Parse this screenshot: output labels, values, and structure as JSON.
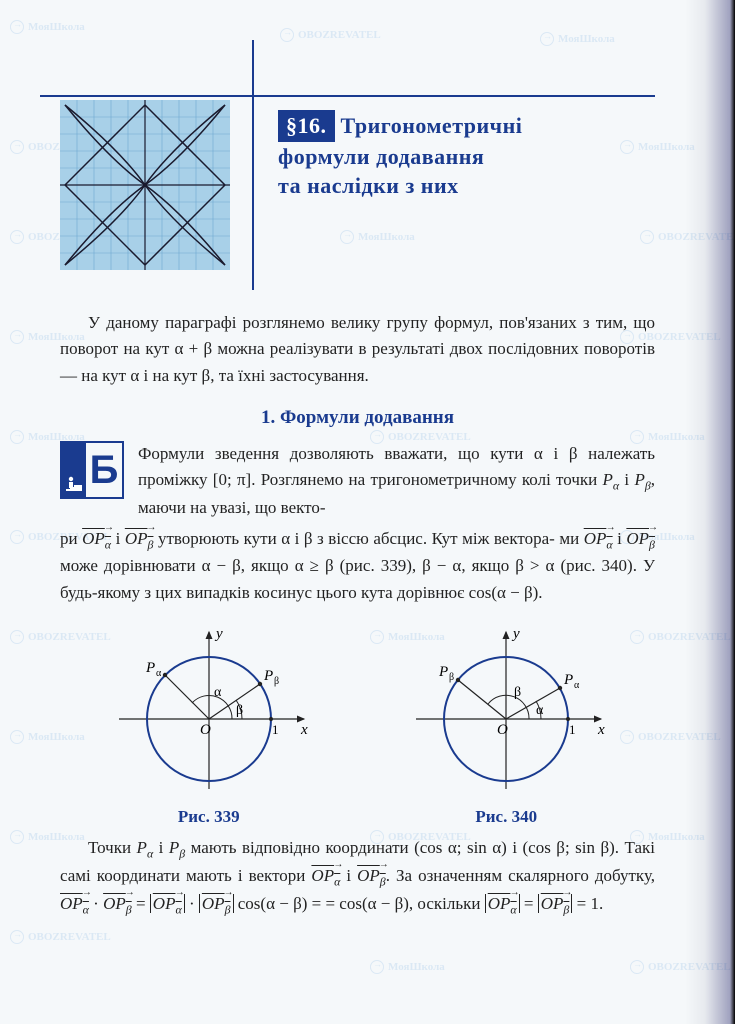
{
  "watermarks": {
    "text1": "МояШкола",
    "text2": "OBOZREVATEL"
  },
  "header": {
    "section_badge": "§16.",
    "title_line1": "Тригонометричні",
    "title_line2": "формули додавання",
    "title_line3": "та наслідки з них",
    "badge_bg": "#1a3b8f",
    "badge_fg": "#ffffff"
  },
  "grid_figure": {
    "bg_color": "#a8d0e8",
    "grid_color": "#6fa8d0",
    "curve_color": "#1a1a2e",
    "grid_size": 10
  },
  "intro_paragraph": "У даному параграфі розглянемо велику групу формул, пов'язаних з тим, що поворот на кут α + β можна реалізувати в результаті двох послідовних поворотів — на кут α і на кут β, та їхні застосування.",
  "subheading1": "1. Формули додавання",
  "b_icon_letter": "Б",
  "para_b_start": "Формули зведення дозволяють вважати, що кути α і β належать проміжку [0; π]. Розглянемо на тригонометричному колі точки ",
  "para_b_mid1": " і ",
  "para_b_mid2": ", маючи на увазі, що векто-",
  "para_continue": "ри ",
  "para_c2": " і ",
  "para_c3": " утворюють кути α і β з віссю абсцис. Кут між вектора-",
  "para_d1": "ми ",
  "para_d2": " і ",
  "para_d3": " може дорівнювати α − β, якщо α ≥ β (рис. 339), β − α, якщо β > α (рис. 340). У будь-якому з цих випадків косинус цього кута дорівнює cos(α − β).",
  "fig339": {
    "caption": "Рис. 339",
    "circle_color": "#1a3b8f",
    "axis_color": "#222222",
    "label_y": "y",
    "label_x": "x",
    "label_O": "O",
    "label_1": "1",
    "label_Pa": "Pα",
    "label_Pb": "Pβ",
    "label_alpha": "α",
    "label_beta": "β",
    "angle_alpha": 135,
    "angle_beta": 35
  },
  "fig340": {
    "caption": "Рис. 340",
    "circle_color": "#1a3b8f",
    "axis_color": "#222222",
    "label_y": "y",
    "label_x": "x",
    "label_O": "O",
    "label_1": "1",
    "label_Pa": "Pα",
    "label_Pb": "Pβ",
    "label_alpha": "α",
    "label_beta": "β",
    "angle_alpha": 30,
    "angle_beta": 140
  },
  "final_para_1": "Точки ",
  "final_para_2": " і ",
  "final_para_3": " мають відповідно координати (cos α; sin α) і (cos β; sin β). Такі самі координати мають і вектори ",
  "final_para_4": " і ",
  "final_para_5": ". За означенням скалярного добутку, ",
  "final_para_6": " · ",
  "final_para_7": " = ",
  "final_para_8": " · ",
  "final_para_9": " cos(α − β) = = cos(α − β), оскільки ",
  "final_para_10": " = ",
  "final_para_11": " = 1.",
  "sym_Pa": "P",
  "sym_Pa_sub": "α",
  "sym_Pb": "P",
  "sym_Pb_sub": "β",
  "sym_OPa": "OP",
  "sym_OPa_sub": "α",
  "sym_OPb": "OP",
  "sym_OPb_sub": "β"
}
